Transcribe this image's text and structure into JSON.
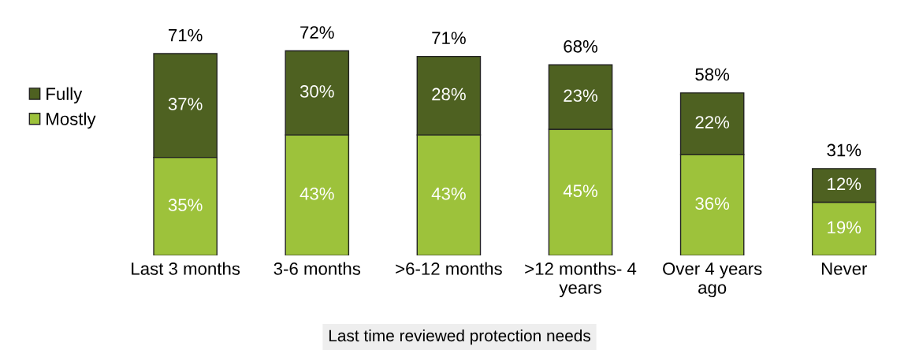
{
  "chart_data": {
    "type": "bar",
    "stacked": true,
    "xlabel": "Last time reviewed protection needs",
    "categories": [
      "Last 3 months",
      "3-6 months",
      ">6-12 months",
      ">12 months- 4 years",
      "Over 4 years ago",
      "Never"
    ],
    "series": [
      {
        "name": "Mostly",
        "color": "#9dc23b",
        "values": [
          35,
          43,
          43,
          45,
          36,
          19
        ],
        "value_labels": [
          "35%",
          "43%",
          "43%",
          "45%",
          "36%",
          "19%"
        ]
      },
      {
        "name": "Fully",
        "color": "#4e6121",
        "values": [
          37,
          30,
          28,
          23,
          22,
          12
        ],
        "value_labels": [
          "37%",
          "30%",
          "28%",
          "23%",
          "22%",
          "12%"
        ]
      }
    ],
    "totals": [
      "71%",
      "72%",
      "71%",
      "68%",
      "58%",
      "31%"
    ],
    "legend": "left",
    "tick_labels": "x",
    "grid": false
  }
}
